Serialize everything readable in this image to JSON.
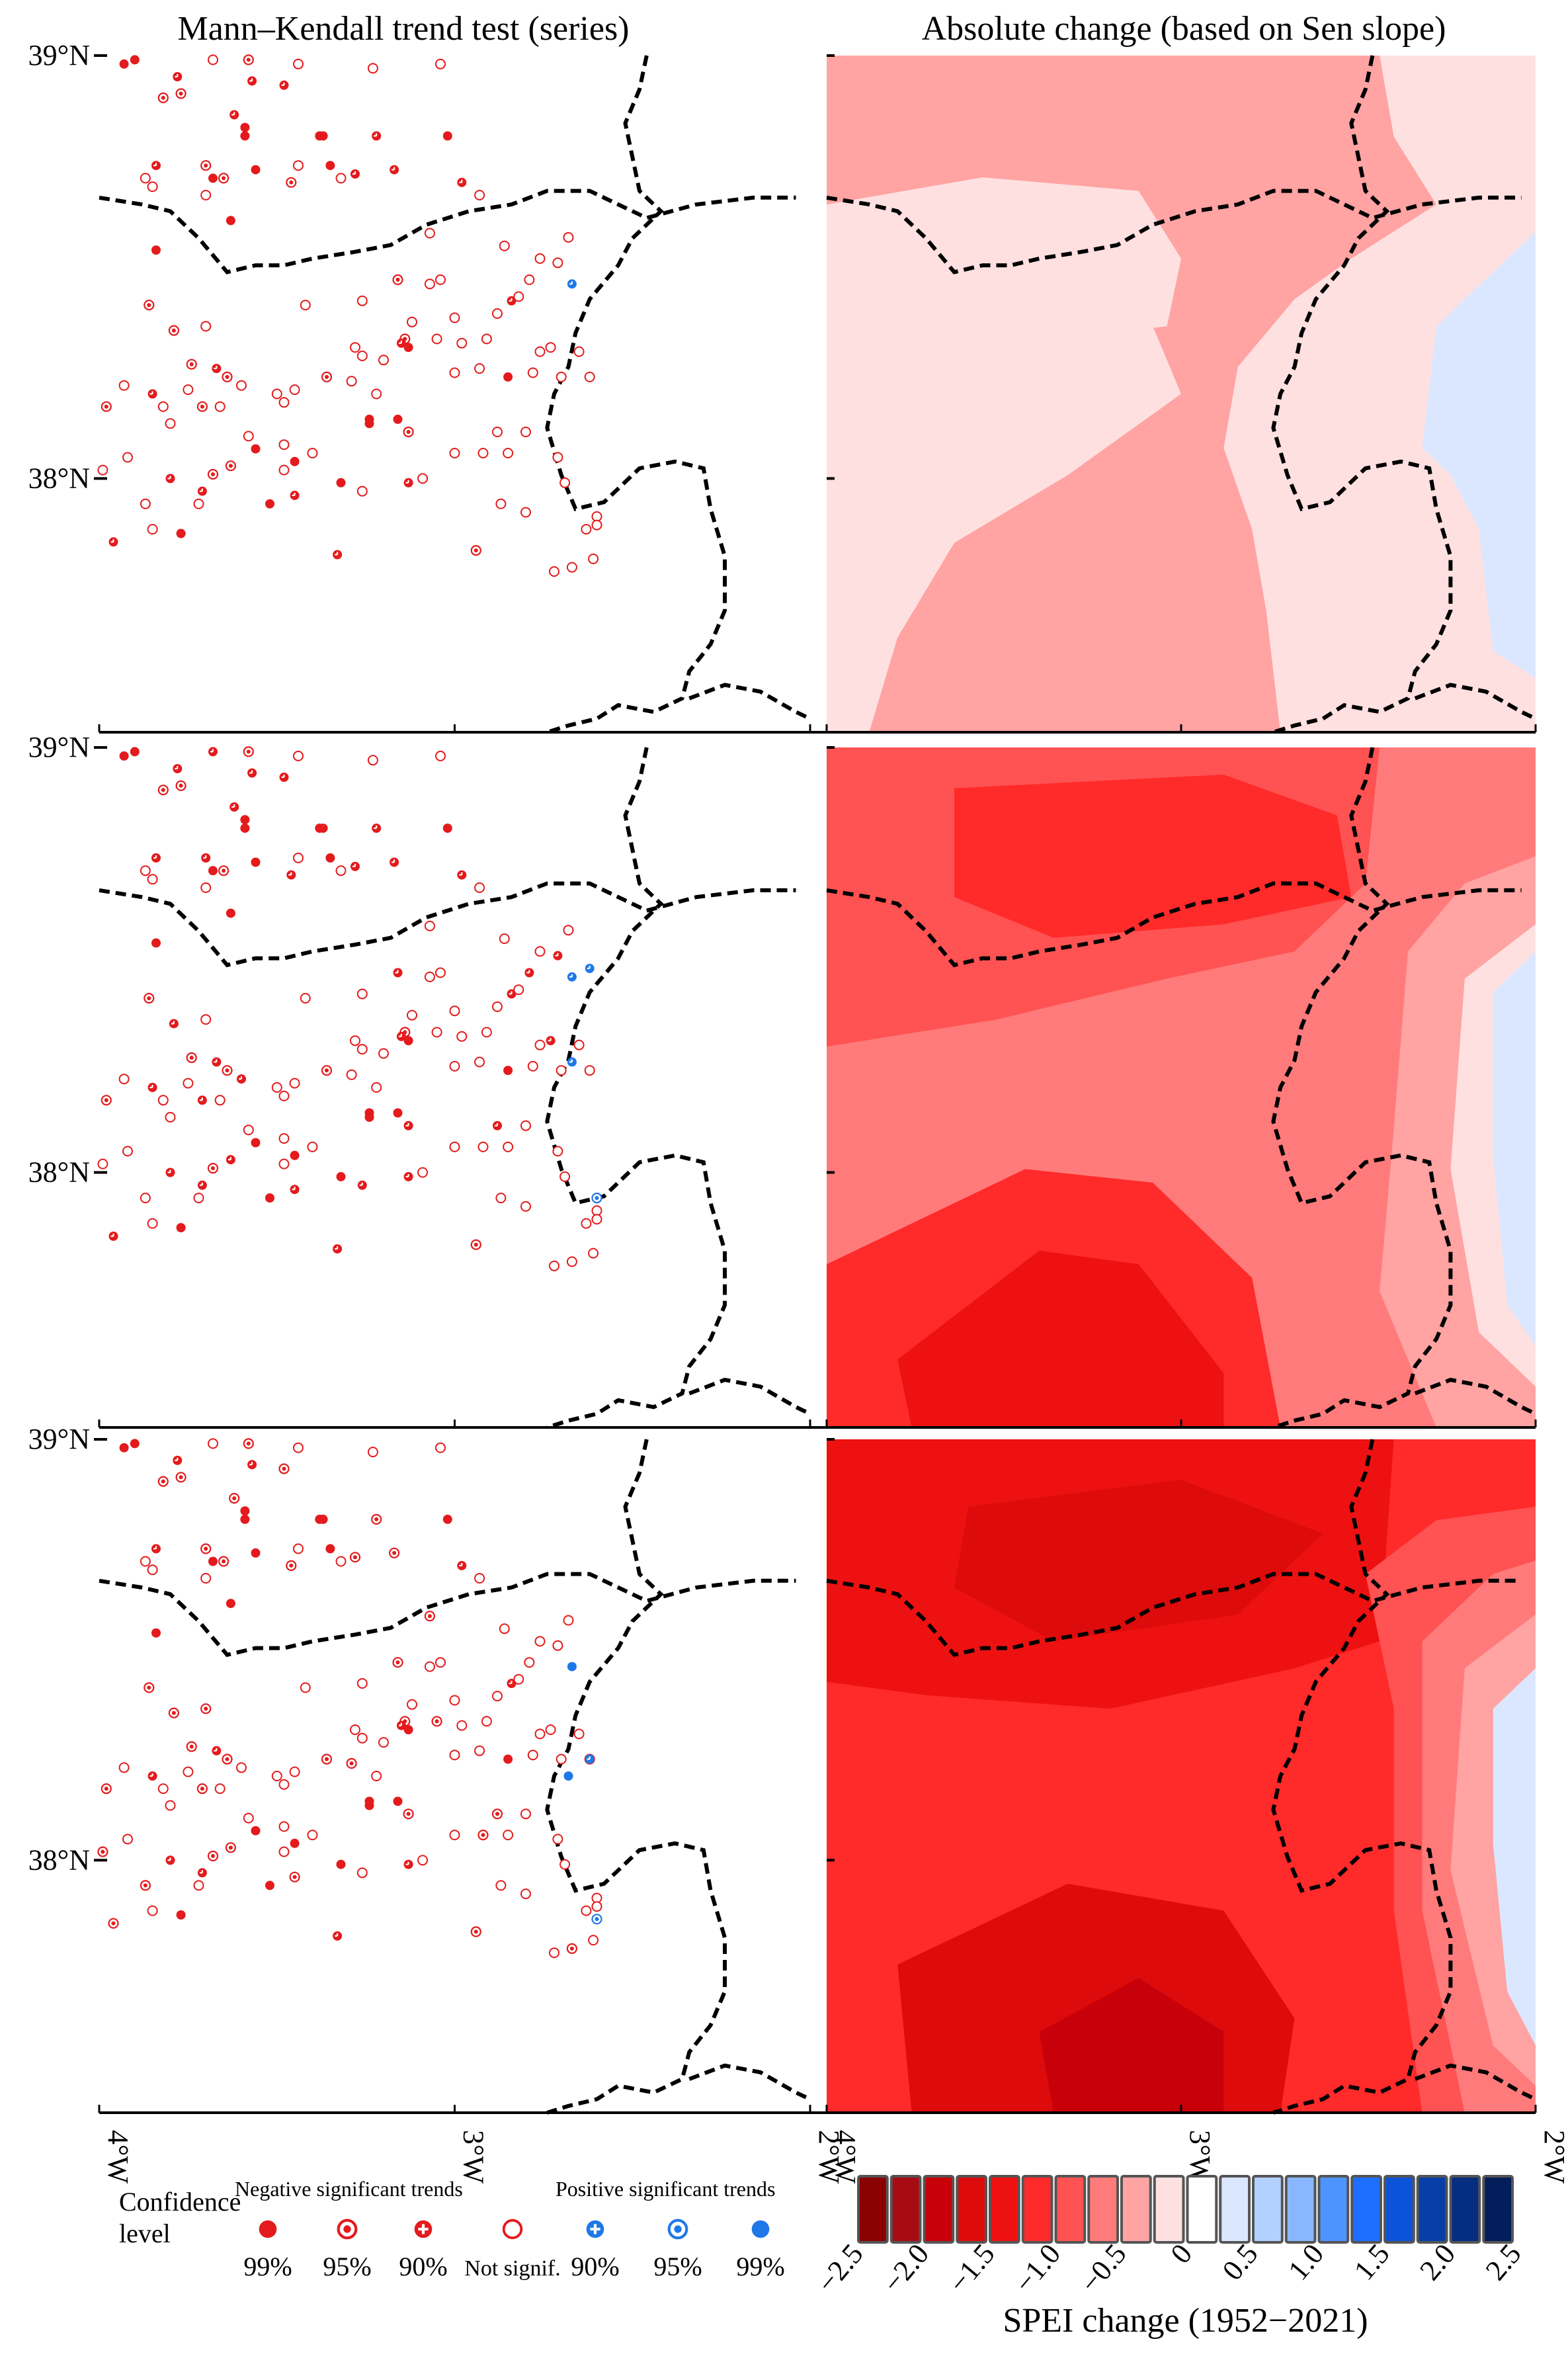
{
  "titles": {
    "left": "Mann–Kendall trend test (series)",
    "right": "Absolute change (based on Sen slope)"
  },
  "axes": {
    "lat_ticks": [
      "39°N",
      "38°N"
    ],
    "lon_ticks": [
      "4°W",
      "3°W",
      "2°W"
    ]
  },
  "legend": {
    "confidence_label": "Confidence level",
    "negative_header": "Negative significant trends",
    "positive_header": "Positive significant trends",
    "items": [
      {
        "label": "99%",
        "sign": "negative",
        "marker": "filled"
      },
      {
        "label": "95%",
        "sign": "negative",
        "marker": "ring-dot"
      },
      {
        "label": "90%",
        "sign": "negative",
        "marker": "cross"
      },
      {
        "label": "Not signif.",
        "sign": "none",
        "marker": "open"
      },
      {
        "label": "90%",
        "sign": "positive",
        "marker": "cross"
      },
      {
        "label": "95%",
        "sign": "positive",
        "marker": "ring-dot"
      },
      {
        "label": "99%",
        "sign": "positive",
        "marker": "filled"
      }
    ]
  },
  "colorbar": {
    "title": "SPEI change (1952−2021)",
    "ticks": [
      "−2.5",
      "−2.0",
      "−1.5",
      "−1.0",
      "−0.5",
      "0",
      "0.5",
      "1.0",
      "1.5",
      "2.0",
      "2.5"
    ],
    "colors": [
      "#8b0000",
      "#a80c12",
      "#c8000a",
      "#dd0b0b",
      "#ee1111",
      "#ff2a2a",
      "#ff5252",
      "#ff7b7b",
      "#ffa3a3",
      "#ffe0e0",
      "#ffffff",
      "#dbe7ff",
      "#b3d1ff",
      "#89b7ff",
      "#4d94ff",
      "#1e6fff",
      "#0b53d8",
      "#083ea8",
      "#052d80",
      "#031e5a"
    ]
  },
  "colors": {
    "negative": "#e41a1c",
    "positive": "#1f78e8",
    "not_signif": "#555555",
    "boundary": "#000000"
  },
  "chart_data": [
    {
      "type": "scatter",
      "panel": "Mann–Kendall trend test, row 1",
      "xlim": [
        -4.0,
        -2.0
      ],
      "ylim": [
        37.4,
        39.0
      ],
      "stations_note": "approximate station positions (lon, lat) and significance class",
      "points": [
        [
          -3.9,
          38.99,
          "n99"
        ],
        [
          -3.93,
          38.98,
          "n99"
        ],
        [
          -3.58,
          38.99,
          "n95"
        ],
        [
          -3.68,
          38.99,
          "ns"
        ],
        [
          -3.44,
          38.98,
          "ns"
        ],
        [
          -3.23,
          38.97,
          "ns"
        ],
        [
          -3.04,
          38.98,
          "ns"
        ],
        [
          -3.78,
          38.95,
          "n90"
        ],
        [
          -3.57,
          38.94,
          "n90"
        ],
        [
          -3.48,
          38.93,
          "n90"
        ],
        [
          -3.82,
          38.9,
          "n95"
        ],
        [
          -3.77,
          38.91,
          "n95"
        ],
        [
          -3.62,
          38.86,
          "n90"
        ],
        [
          -3.59,
          38.83,
          "n99"
        ],
        [
          -3.59,
          38.81,
          "n99"
        ],
        [
          -3.02,
          38.81,
          "n99"
        ],
        [
          -3.37,
          38.81,
          "n90"
        ],
        [
          -3.38,
          38.81,
          "n99"
        ],
        [
          -3.22,
          38.81,
          "n90"
        ],
        [
          -3.84,
          38.74,
          "n90"
        ],
        [
          -3.7,
          38.74,
          "n95"
        ],
        [
          -3.56,
          38.73,
          "n99"
        ],
        [
          -3.44,
          38.74,
          "ns"
        ],
        [
          -3.35,
          38.74,
          "n99"
        ],
        [
          -3.28,
          38.72,
          "n90"
        ],
        [
          -3.87,
          38.71,
          "ns"
        ],
        [
          -3.68,
          38.71,
          "n99"
        ],
        [
          -3.65,
          38.71,
          "n95"
        ],
        [
          -3.46,
          38.7,
          "n95"
        ],
        [
          -3.32,
          38.71,
          "ns"
        ],
        [
          -3.17,
          38.73,
          "n90"
        ],
        [
          -2.98,
          38.7,
          "n90"
        ],
        [
          -2.93,
          38.67,
          "ns"
        ],
        [
          -3.7,
          38.67,
          "ns"
        ],
        [
          -3.85,
          38.69,
          "ns"
        ],
        [
          -3.63,
          38.61,
          "n99"
        ],
        [
          -3.84,
          38.54,
          "n99"
        ],
        [
          -3.07,
          38.58,
          "ns"
        ],
        [
          -2.86,
          38.55,
          "ns"
        ],
        [
          -2.71,
          38.51,
          "ns"
        ],
        [
          -2.76,
          38.52,
          "ns"
        ],
        [
          -2.68,
          38.57,
          "ns"
        ],
        [
          -3.04,
          38.47,
          "ns"
        ],
        [
          -3.07,
          38.46,
          "ns"
        ],
        [
          -3.16,
          38.47,
          "n95"
        ],
        [
          -3.26,
          38.42,
          "ns"
        ],
        [
          -3.42,
          38.41,
          "ns"
        ],
        [
          -3.86,
          38.41,
          "n95"
        ],
        [
          -2.79,
          38.47,
          "ns"
        ],
        [
          -2.84,
          38.42,
          "n90"
        ],
        [
          -2.88,
          38.39,
          "ns"
        ],
        [
          -2.67,
          38.46,
          "p90"
        ],
        [
          -2.82,
          38.43,
          "ns"
        ],
        [
          -3.0,
          38.38,
          "ns"
        ],
        [
          -3.12,
          38.37,
          "ns"
        ],
        [
          -3.14,
          38.33,
          "n95"
        ],
        [
          -3.15,
          38.32,
          "n90"
        ],
        [
          -3.13,
          38.31,
          "n99"
        ],
        [
          -3.05,
          38.33,
          "ns"
        ],
        [
          -2.98,
          38.32,
          "ns"
        ],
        [
          -2.91,
          38.33,
          "ns"
        ],
        [
          -3.28,
          38.31,
          "ns"
        ],
        [
          -3.26,
          38.29,
          "ns"
        ],
        [
          -3.2,
          38.28,
          "ns"
        ],
        [
          -3.79,
          38.35,
          "n95"
        ],
        [
          -3.7,
          38.36,
          "ns"
        ],
        [
          -2.73,
          38.31,
          "ns"
        ],
        [
          -2.76,
          38.3,
          "ns"
        ],
        [
          -2.65,
          38.3,
          "ns"
        ],
        [
          -2.85,
          38.24,
          "n99"
        ],
        [
          -2.93,
          38.26,
          "ns"
        ],
        [
          -3.0,
          38.25,
          "ns"
        ],
        [
          -2.62,
          38.24,
          "ns"
        ],
        [
          -2.78,
          38.25,
          "ns"
        ],
        [
          -2.7,
          38.24,
          "ns"
        ],
        [
          -3.74,
          38.27,
          "n95"
        ],
        [
          -3.67,
          38.26,
          "n90"
        ],
        [
          -3.75,
          38.21,
          "ns"
        ],
        [
          -3.64,
          38.24,
          "n95"
        ],
        [
          -3.36,
          38.24,
          "n95"
        ],
        [
          -3.45,
          38.21,
          "ns"
        ],
        [
          -3.93,
          38.22,
          "ns"
        ],
        [
          -3.85,
          38.2,
          "n90"
        ],
        [
          -3.82,
          38.17,
          "ns"
        ],
        [
          -3.6,
          38.22,
          "ns"
        ],
        [
          -3.5,
          38.2,
          "ns"
        ],
        [
          -3.29,
          38.23,
          "ns"
        ],
        [
          -3.22,
          38.2,
          "ns"
        ],
        [
          -3.48,
          38.18,
          "ns"
        ],
        [
          -3.24,
          38.14,
          "n99"
        ],
        [
          -3.24,
          38.13,
          "n99"
        ],
        [
          -3.16,
          38.14,
          "n99"
        ],
        [
          -3.13,
          38.11,
          "n95"
        ],
        [
          -2.88,
          38.11,
          "ns"
        ],
        [
          -2.8,
          38.11,
          "ns"
        ],
        [
          -3.66,
          38.17,
          "ns"
        ],
        [
          -3.71,
          38.17,
          "n95"
        ],
        [
          -3.8,
          38.13,
          "ns"
        ],
        [
          -3.98,
          38.17,
          "n95"
        ],
        [
          -3.58,
          38.1,
          "ns"
        ],
        [
          -3.99,
          38.02,
          "ns"
        ],
        [
          -3.45,
          38.04,
          "n99"
        ],
        [
          -3.56,
          38.07,
          "n99"
        ],
        [
          -3.48,
          38.08,
          "ns"
        ],
        [
          -3.4,
          38.06,
          "ns"
        ],
        [
          -3.92,
          38.05,
          "ns"
        ],
        [
          -3.8,
          38.0,
          "n90"
        ],
        [
          -3.71,
          37.97,
          "n90"
        ],
        [
          -3.63,
          38.03,
          "n95"
        ],
        [
          -3.68,
          38.01,
          "n95"
        ],
        [
          -3.48,
          38.02,
          "ns"
        ],
        [
          -3.26,
          37.97,
          "ns"
        ],
        [
          -3.09,
          38.0,
          "ns"
        ],
        [
          -3.0,
          38.06,
          "ns"
        ],
        [
          -2.92,
          38.06,
          "ns"
        ],
        [
          -2.85,
          38.06,
          "ns"
        ],
        [
          -2.71,
          38.05,
          "ns"
        ],
        [
          -2.69,
          37.99,
          "ns"
        ],
        [
          -2.6,
          37.91,
          "ns"
        ],
        [
          -3.52,
          37.94,
          "n99"
        ],
        [
          -3.45,
          37.96,
          "n90"
        ],
        [
          -3.32,
          37.99,
          "n99"
        ],
        [
          -3.13,
          37.99,
          "n90"
        ],
        [
          -2.87,
          37.94,
          "ns"
        ],
        [
          -2.8,
          37.92,
          "ns"
        ],
        [
          -2.63,
          37.88,
          "ns"
        ],
        [
          -2.6,
          37.89,
          "ns"
        ],
        [
          -3.72,
          37.94,
          "ns"
        ],
        [
          -3.87,
          37.94,
          "ns"
        ],
        [
          -3.77,
          37.87,
          "n99"
        ],
        [
          -2.72,
          37.78,
          "ns"
        ],
        [
          -3.85,
          37.88,
          "ns"
        ],
        [
          -3.96,
          37.85,
          "n90"
        ],
        [
          -3.33,
          37.82,
          "n90"
        ],
        [
          -2.94,
          37.83,
          "n95"
        ],
        [
          -2.67,
          37.79,
          "ns"
        ],
        [
          -2.61,
          37.81,
          "ns"
        ]
      ]
    },
    {
      "type": "heatmap",
      "panel": "Absolute change (based on Sen slope), row 1",
      "xlim": [
        -4.0,
        -2.0
      ],
      "ylim": [
        37.4,
        39.0
      ],
      "value_range": [
        -1.0,
        0.5
      ],
      "dominant_classes": [
        "-0.5 to 0",
        "-1.0 to -0.5",
        "0 to 0.5"
      ]
    },
    {
      "type": "scatter",
      "panel": "Mann–Kendall trend test, row 2",
      "xlim": [
        -4.0,
        -2.0
      ],
      "ylim": [
        37.4,
        39.0
      ],
      "note": "station network identical to row 1; mostly negative significant trends, a few positive (90%, 95%)"
    },
    {
      "type": "heatmap",
      "panel": "Absolute change (based on Sen slope), row 2",
      "xlim": [
        -4.0,
        -2.0
      ],
      "ylim": [
        37.4,
        39.0
      ],
      "value_range": [
        -2.0,
        0.5
      ],
      "dominant_classes": [
        "-1.5 to -1.0",
        "-1.0 to -0.5",
        "-0.5 to 0",
        "0 to 0.5"
      ]
    },
    {
      "type": "scatter",
      "panel": "Mann–Kendall trend test, row 3",
      "xlim": [
        -4.0,
        -2.0
      ],
      "ylim": [
        37.4,
        39.0
      ],
      "note": "station network identical to row 1; mostly negative significant trends, a few positive (90%, 95%, 99%)"
    },
    {
      "type": "heatmap",
      "panel": "Absolute change (based on Sen slope), row 3",
      "xlim": [
        -4.0,
        -2.0
      ],
      "ylim": [
        37.4,
        39.0
      ],
      "value_range": [
        -2.5,
        0.5
      ],
      "dominant_classes": [
        "-2.5 to -1.5",
        "-1.5 to -1.0",
        "-1.0 to -0.5",
        "0 to 0.5"
      ]
    }
  ]
}
